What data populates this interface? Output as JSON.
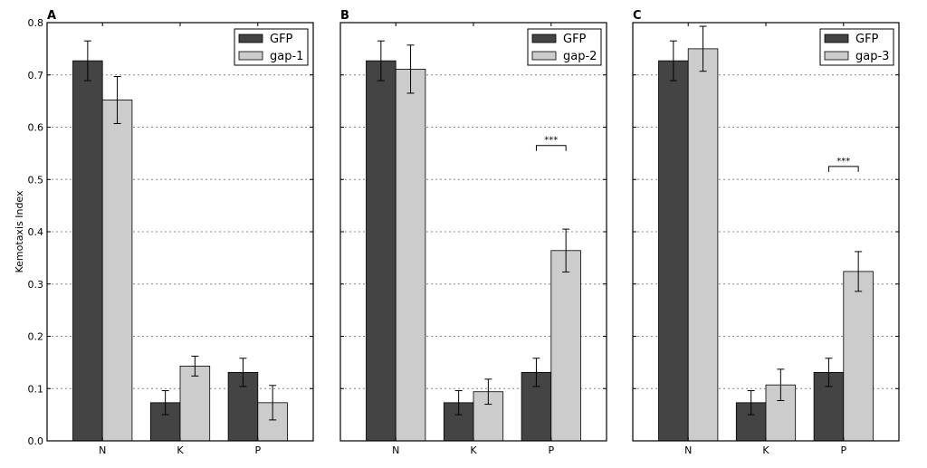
{
  "figure": {
    "ylabel": "Kemotaxis Index"
  },
  "chart_data": [
    {
      "type": "bar",
      "panel": "A",
      "categories": [
        "N",
        "K",
        "P"
      ],
      "series": [
        {
          "name": "GFP",
          "values": [
            0.727,
            0.073,
            0.131
          ],
          "errors": [
            0.038,
            0.023,
            0.027
          ],
          "color": "#444444"
        },
        {
          "name": "gap-1",
          "values": [
            0.652,
            0.143,
            0.073
          ],
          "errors": [
            0.045,
            0.019,
            0.033
          ],
          "color": "#cccccc"
        }
      ],
      "ylabel": "Kemotaxis Index",
      "ylim": [
        0,
        0.8
      ],
      "yticks": [
        "0.0",
        "0.1",
        "0.2",
        "0.3",
        "0.4",
        "0.5",
        "0.6",
        "0.7",
        "0.8"
      ],
      "grid": "horizontal dotted",
      "legend": "top-right",
      "significance": []
    },
    {
      "type": "bar",
      "panel": "B",
      "categories": [
        "N",
        "K",
        "P"
      ],
      "series": [
        {
          "name": "GFP",
          "values": [
            0.727,
            0.073,
            0.131
          ],
          "errors": [
            0.038,
            0.023,
            0.027
          ],
          "color": "#444444"
        },
        {
          "name": "gap-2",
          "values": [
            0.711,
            0.094,
            0.364
          ],
          "errors": [
            0.046,
            0.024,
            0.041
          ],
          "color": "#cccccc"
        }
      ],
      "ylim": [
        0,
        0.8
      ],
      "yticks": [
        "0.0",
        "0.1",
        "0.2",
        "0.3",
        "0.4",
        "0.5",
        "0.6",
        "0.7",
        "0.8"
      ],
      "grid": "horizontal dotted",
      "legend": "top-right",
      "significance": [
        {
          "category": "P",
          "label": "***",
          "y": 0.565
        }
      ]
    },
    {
      "type": "bar",
      "panel": "C",
      "categories": [
        "N",
        "K",
        "P"
      ],
      "series": [
        {
          "name": "GFP",
          "values": [
            0.727,
            0.073,
            0.131
          ],
          "errors": [
            0.038,
            0.023,
            0.027
          ],
          "color": "#444444"
        },
        {
          "name": "gap-3",
          "values": [
            0.75,
            0.107,
            0.324
          ],
          "errors": [
            0.043,
            0.03,
            0.038
          ],
          "color": "#cccccc"
        }
      ],
      "ylim": [
        0,
        0.8
      ],
      "yticks": [
        "0.0",
        "0.1",
        "0.2",
        "0.3",
        "0.4",
        "0.5",
        "0.6",
        "0.7",
        "0.8"
      ],
      "grid": "horizontal dotted",
      "legend": "top-right",
      "significance": [
        {
          "category": "P",
          "label": "***",
          "y": 0.525
        }
      ]
    }
  ]
}
